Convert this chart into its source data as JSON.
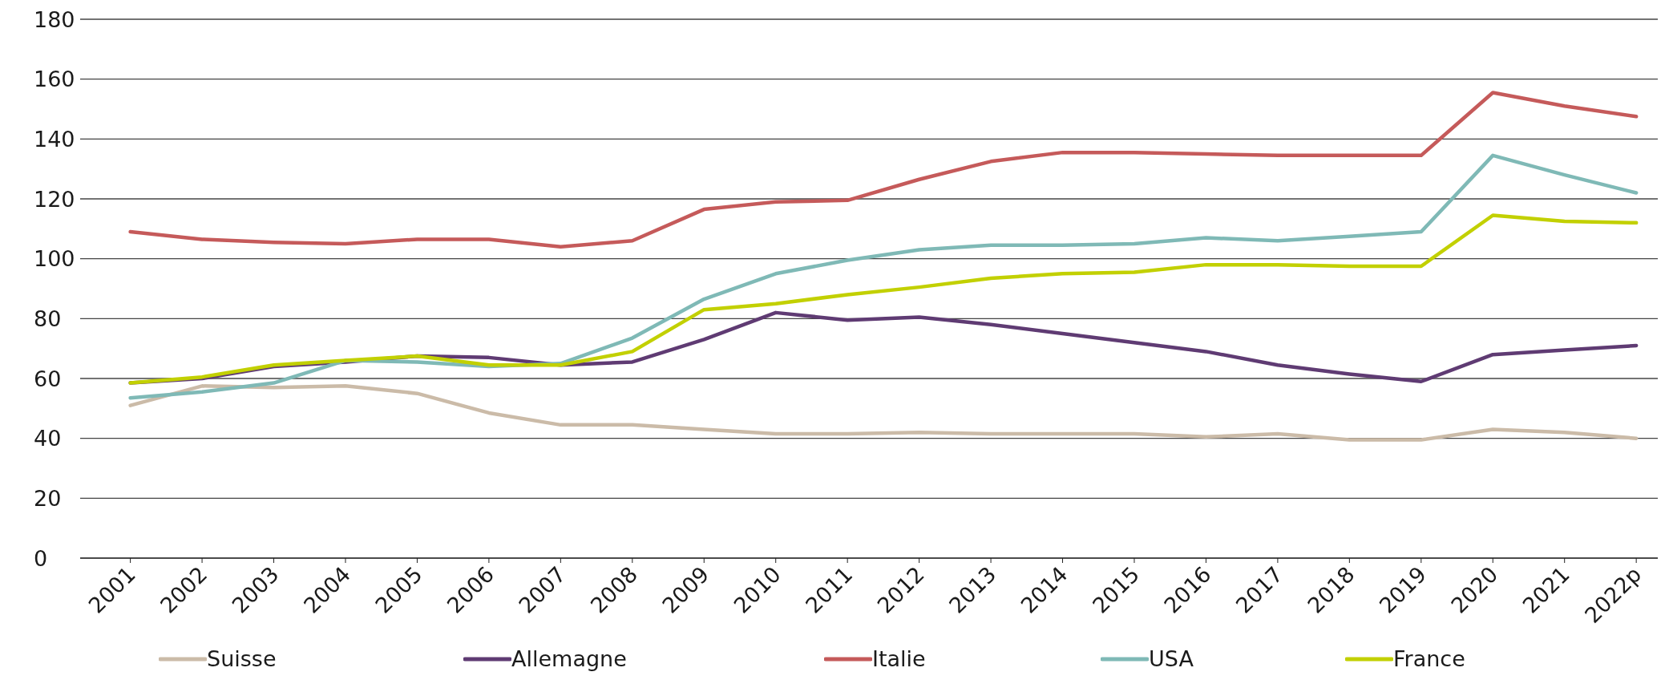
{
  "chart_data": {
    "type": "line",
    "categories": [
      "2001",
      "2002",
      "2003",
      "2004",
      "2005",
      "2006",
      "2007",
      "2008",
      "2009",
      "2010",
      "2011",
      "2012",
      "2013",
      "2014",
      "2015",
      "2016",
      "2017",
      "2018",
      "2019",
      "2020",
      "2021",
      "2022p"
    ],
    "series": [
      {
        "name": "Suisse",
        "color": "#cbbba8",
        "values": [
          51,
          57.5,
          57,
          57.5,
          55,
          48.5,
          44.5,
          44.5,
          43,
          41.5,
          41.5,
          42,
          41.5,
          41.5,
          41.5,
          40.5,
          41.5,
          39.5,
          39.5,
          43,
          42,
          40
        ]
      },
      {
        "name": "Allemagne",
        "color": "#5f3b73",
        "values": [
          58.5,
          60,
          64,
          65.5,
          67.5,
          67,
          64.5,
          65.5,
          73,
          82,
          79.5,
          80.5,
          78,
          75,
          72,
          69,
          64.5,
          61.5,
          59,
          68,
          69.5,
          71
        ]
      },
      {
        "name": "Italie",
        "color": "#c55a5a",
        "values": [
          109,
          106.5,
          105.5,
          105,
          106.5,
          106.5,
          104,
          106,
          116.5,
          119,
          119.5,
          126.5,
          132.5,
          135.5,
          135.5,
          135,
          134.5,
          134.5,
          134.5,
          155.5,
          151,
          147.5
        ]
      },
      {
        "name": "USA",
        "color": "#7fb9b6",
        "values": [
          53.5,
          55.5,
          58.5,
          66,
          65.5,
          64,
          65,
          73.5,
          86.5,
          95,
          99.5,
          103,
          104.5,
          104.5,
          105,
          107,
          106,
          107.5,
          109,
          134.5,
          128,
          122
        ]
      },
      {
        "name": "France",
        "color": "#c2d000",
        "values": [
          58.5,
          60.5,
          64.5,
          66,
          67.5,
          64.5,
          64.5,
          69,
          83,
          85,
          88,
          90.5,
          93.5,
          95,
          95.5,
          98,
          98,
          97.5,
          97.5,
          114.5,
          112.5,
          112
        ]
      }
    ],
    "ylim": [
      0,
      180
    ],
    "yticks": [
      0,
      20,
      40,
      60,
      80,
      100,
      120,
      140,
      160,
      180
    ],
    "grid": "y",
    "legend": "bottom",
    "marker": "none",
    "line_style": "solid"
  }
}
